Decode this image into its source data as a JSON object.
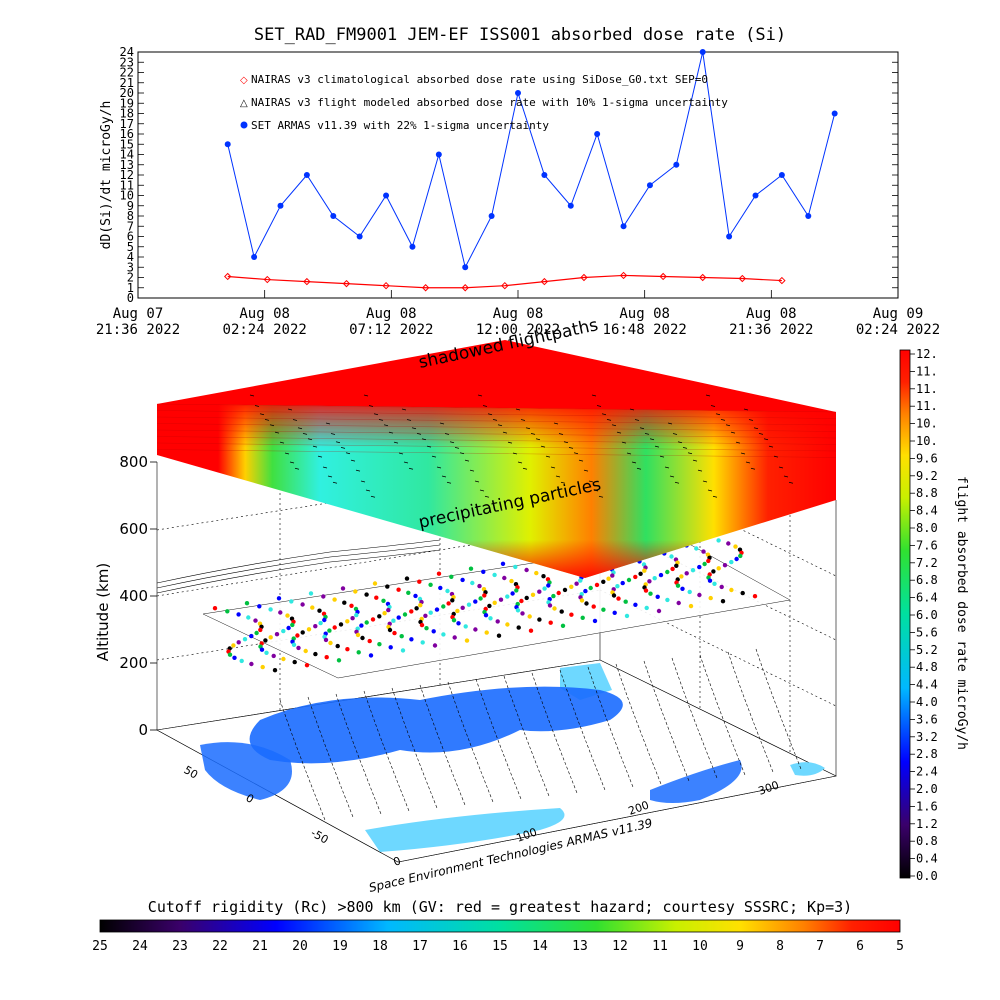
{
  "top_chart": {
    "title": "SET_RAD_FM9001  JEM-EF ISS001 absorbed dose rate (Si)",
    "ylabel": "dD(Si)/dt microGy/h",
    "y_ticks": [
      "0",
      "1",
      "2",
      "3",
      "4",
      "5",
      "6",
      "7",
      "8",
      "9",
      "10",
      "11",
      "12",
      "13",
      "14",
      "15",
      "16",
      "17",
      "18",
      "19",
      "20",
      "21",
      "22",
      "23",
      "24"
    ],
    "x_ticks": [
      {
        "line1": "Aug 07",
        "line2": "21:36 2022"
      },
      {
        "line1": "Aug 08",
        "line2": "02:24 2022"
      },
      {
        "line1": "Aug 08",
        "line2": "07:12 2022"
      },
      {
        "line1": "Aug 08",
        "line2": "12:00 2022"
      },
      {
        "line1": "Aug 08",
        "line2": "16:48 2022"
      },
      {
        "line1": "Aug 08",
        "line2": "21:36 2022"
      },
      {
        "line1": "Aug 09",
        "line2": "02:24 2022"
      }
    ],
    "legend": [
      "NAIRAS v3 climatological absorbed dose rate using SiDose_G0.txt SEP=0",
      "NAIRAS v3 flight modeled absorbed dose rate with 10% 1-sigma uncertainty",
      "SET ARMAS v11.39 with 22% 1-sigma uncertainty"
    ]
  },
  "chart_data": {
    "type": "line",
    "title": "SET_RAD_FM9001  JEM-EF ISS001 absorbed dose rate (Si)",
    "ylabel": "dD(Si)/dt microGy/h",
    "xlabel": "",
    "ylim": [
      0,
      24
    ],
    "xlim": [
      "2022-08-07 21:36",
      "2022-08-09 02:24"
    ],
    "series": [
      {
        "name": "NAIRAS v3 climatological absorbed dose rate using SiDose_G0.txt SEP=0",
        "color": "#ff0000",
        "marker": "diamond",
        "x": [
          "2022-08-08 01:00",
          "2022-08-08 02:30",
          "2022-08-08 04:00",
          "2022-08-08 05:30",
          "2022-08-08 07:00",
          "2022-08-08 08:30",
          "2022-08-08 10:00",
          "2022-08-08 11:30",
          "2022-08-08 13:00",
          "2022-08-08 14:30",
          "2022-08-08 16:00",
          "2022-08-08 17:30",
          "2022-08-08 19:00",
          "2022-08-08 20:30",
          "2022-08-08 22:00"
        ],
        "y": [
          2.1,
          1.8,
          1.6,
          1.4,
          1.2,
          1.0,
          1.0,
          1.2,
          1.6,
          2.0,
          2.2,
          2.1,
          2.0,
          1.9,
          1.7
        ]
      },
      {
        "name": "SET ARMAS v11.39 with 22% 1-sigma uncertainty",
        "color": "#0033ff",
        "marker": "circle",
        "x": [
          "2022-08-08 01:00",
          "2022-08-08 02:00",
          "2022-08-08 03:00",
          "2022-08-08 04:00",
          "2022-08-08 05:00",
          "2022-08-08 06:00",
          "2022-08-08 07:00",
          "2022-08-08 08:00",
          "2022-08-08 09:00",
          "2022-08-08 10:00",
          "2022-08-08 11:00",
          "2022-08-08 12:00",
          "2022-08-08 13:00",
          "2022-08-08 14:00",
          "2022-08-08 15:00",
          "2022-08-08 16:00",
          "2022-08-08 17:00",
          "2022-08-08 18:00",
          "2022-08-08 19:00",
          "2022-08-08 20:00",
          "2022-08-08 21:00",
          "2022-08-08 22:00",
          "2022-08-08 23:00",
          "2022-08-09 00:00"
        ],
        "y": [
          15,
          4,
          9,
          12,
          8,
          6,
          10,
          5,
          14,
          3,
          8,
          20,
          12,
          9,
          16,
          7,
          11,
          13,
          24,
          6,
          10,
          12,
          8,
          18
        ]
      }
    ]
  },
  "center_plot": {
    "top_label": "shadowed flightpaths",
    "mid_label": "precipitating particles",
    "z_label": "Altitude (km)",
    "z_ticks": [
      "0",
      "200",
      "400",
      "600",
      "800"
    ],
    "lat_ticks": [
      "50",
      "0",
      "-50"
    ],
    "lon_ticks": [
      "0",
      "100",
      "200",
      "300"
    ],
    "credit": "Space Environment Technologies ARMAS v11.39"
  },
  "right_colorbar": {
    "label": "flight absorbed dose rate microGy/h",
    "ticks": [
      "12.",
      "11.",
      "11.",
      "11.",
      "10.",
      "10.",
      "9.6",
      "9.2",
      "8.8",
      "8.4",
      "8.0",
      "7.6",
      "7.2",
      "6.8",
      "6.4",
      "6.0",
      "5.6",
      "5.2",
      "4.8",
      "4.4",
      "4.0",
      "3.6",
      "3.2",
      "2.8",
      "2.4",
      "2.0",
      "1.6",
      "1.2",
      "0.8",
      "0.4",
      "0.0"
    ]
  },
  "bottom_colorbar": {
    "label": "Cutoff rigidity (Rc) >800 km (GV: red = greatest hazard; courtesy SSSRC; Kp=3)",
    "ticks": [
      "25",
      "24",
      "23",
      "22",
      "21",
      "20",
      "19",
      "18",
      "17",
      "16",
      "15",
      "14",
      "13",
      "12",
      "11",
      "10",
      "9",
      "8",
      "7",
      "6",
      "5"
    ]
  },
  "colors": {
    "red": "#ff0000",
    "blue": "#0033ff",
    "land": "#1a6cff",
    "ocean": "#6ed8ff",
    "green": "#00e060",
    "cyan": "#3cf2e8"
  }
}
